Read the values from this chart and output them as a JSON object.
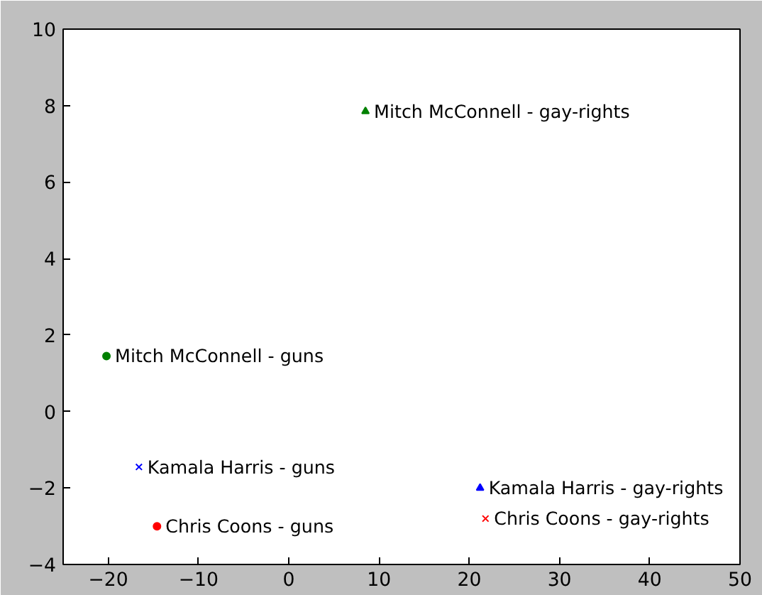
{
  "chart_data": {
    "type": "scatter",
    "xlim": [
      -25,
      50
    ],
    "ylim": [
      -4,
      10
    ],
    "xticks": [
      {
        "value": -20,
        "label": "−20"
      },
      {
        "value": -10,
        "label": "−10"
      },
      0,
      10,
      20,
      30,
      40,
      50
    ],
    "yticks": [
      {
        "value": -4,
        "label": "−4"
      },
      {
        "value": -2,
        "label": "−2"
      },
      0,
      2,
      4,
      6,
      8,
      10
    ],
    "grid": false,
    "legend": false,
    "series": [
      {
        "name": "Mitch McConnell - gay-rights",
        "color": "#008000",
        "marker": "triangle",
        "x": [
          8.5
        ],
        "values": [
          7.85
        ]
      },
      {
        "name": "Mitch McConnell - guns",
        "color": "#008000",
        "marker": "circle",
        "x": [
          -20.2
        ],
        "values": [
          1.45
        ]
      },
      {
        "name": "Kamala Harris - guns",
        "color": "#0000ff",
        "marker": "cross",
        "x": [
          -16.6
        ],
        "values": [
          -1.45
        ]
      },
      {
        "name": "Chris Coons - guns",
        "color": "#ff0000",
        "marker": "circle",
        "x": [
          -14.6
        ],
        "values": [
          -3.0
        ]
      },
      {
        "name": "Kamala Harris - gay-rights",
        "color": "#0000ff",
        "marker": "triangle",
        "x": [
          21.2
        ],
        "values": [
          -2.0
        ]
      },
      {
        "name": "Chris Coons - gay-rights",
        "color": "#ff0000",
        "marker": "cross",
        "x": [
          21.8
        ],
        "values": [
          -2.8
        ]
      }
    ]
  }
}
